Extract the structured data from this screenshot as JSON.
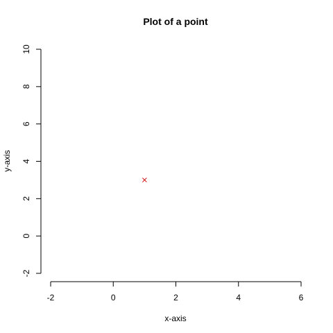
{
  "chart_data": {
    "type": "scatter",
    "title": "Plot of a point",
    "xlabel": "x-axis",
    "ylabel": "y-axis",
    "xlim": [
      -2,
      6
    ],
    "ylim": [
      -2,
      10
    ],
    "x_ticks": [
      -2,
      0,
      2,
      4,
      6
    ],
    "y_ticks": [
      -2,
      0,
      2,
      4,
      6,
      8,
      10
    ],
    "x_tick_labels": [
      "-2",
      "0",
      "2",
      "4",
      "6"
    ],
    "y_tick_labels": [
      "-2",
      "0",
      "2",
      "4",
      "6",
      "8",
      "10"
    ],
    "grid": false,
    "legend": "none",
    "series": [
      {
        "marker": "x",
        "color": "#cc0000",
        "points": [
          {
            "x": 1,
            "y": 3
          }
        ]
      }
    ]
  }
}
